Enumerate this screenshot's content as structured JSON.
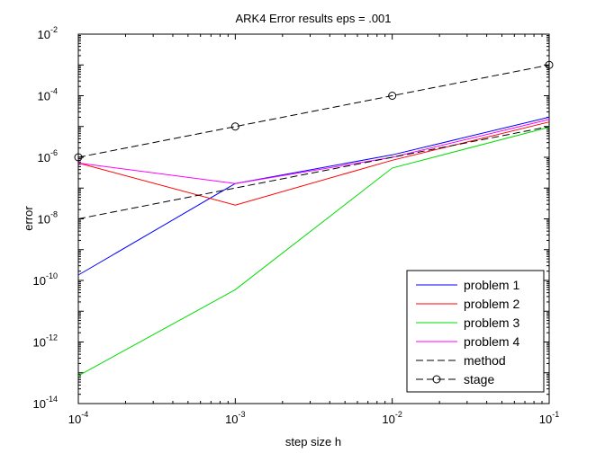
{
  "chart_data": {
    "type": "line",
    "title": "ARK4 Error results eps = .001",
    "xlabel": "step size h",
    "ylabel": "error",
    "xscale": "log",
    "yscale": "log",
    "xlim": [
      0.0001,
      0.1
    ],
    "ylim": [
      1e-14,
      0.01
    ],
    "x_ticks": [
      {
        "base": "10",
        "exp": "-4",
        "value": 0.0001
      },
      {
        "base": "10",
        "exp": "-3",
        "value": 0.001
      },
      {
        "base": "10",
        "exp": "-2",
        "value": 0.01
      },
      {
        "base": "10",
        "exp": "-1",
        "value": 0.1
      }
    ],
    "y_ticks": [
      {
        "base": "10",
        "exp": "-14",
        "value": 1e-14
      },
      {
        "base": "10",
        "exp": "-12",
        "value": 1e-12
      },
      {
        "base": "10",
        "exp": "-10",
        "value": 1e-10
      },
      {
        "base": "10",
        "exp": "-8",
        "value": 1e-08
      },
      {
        "base": "10",
        "exp": "-6",
        "value": 1e-06
      },
      {
        "base": "10",
        "exp": "-4",
        "value": 0.0001
      },
      {
        "base": "10",
        "exp": "-2",
        "value": 0.01
      }
    ],
    "grid": false,
    "legend_position": "bottom-right",
    "x": [
      0.0001,
      0.001,
      0.01,
      0.1
    ],
    "series": [
      {
        "name": "problem 1",
        "color": "#0000ff",
        "style": "solid",
        "marker": "none",
        "values": [
          1.5e-10,
          1.4e-07,
          1.2e-06,
          2e-05
        ]
      },
      {
        "name": "problem 2",
        "color": "#ff0000",
        "style": "solid",
        "marker": "none",
        "values": [
          6.5e-07,
          2.8e-08,
          8e-07,
          1.4e-05
        ]
      },
      {
        "name": "problem 3",
        "color": "#00dd00",
        "style": "solid",
        "marker": "none",
        "values": [
          8e-14,
          5e-11,
          4.5e-07,
          9.5e-06
        ]
      },
      {
        "name": "problem 4",
        "color": "#ff00ff",
        "style": "solid",
        "marker": "none",
        "values": [
          6.5e-07,
          1.4e-07,
          1e-06,
          1.7e-05
        ]
      },
      {
        "name": "method",
        "color": "#000000",
        "style": "dashed",
        "marker": "none",
        "values": [
          1e-08,
          1e-07,
          1e-06,
          1e-05
        ]
      },
      {
        "name": "stage",
        "color": "#000000",
        "style": "dashed",
        "marker": "circle",
        "values": [
          1e-06,
          1e-05,
          0.0001,
          0.001
        ]
      }
    ]
  }
}
